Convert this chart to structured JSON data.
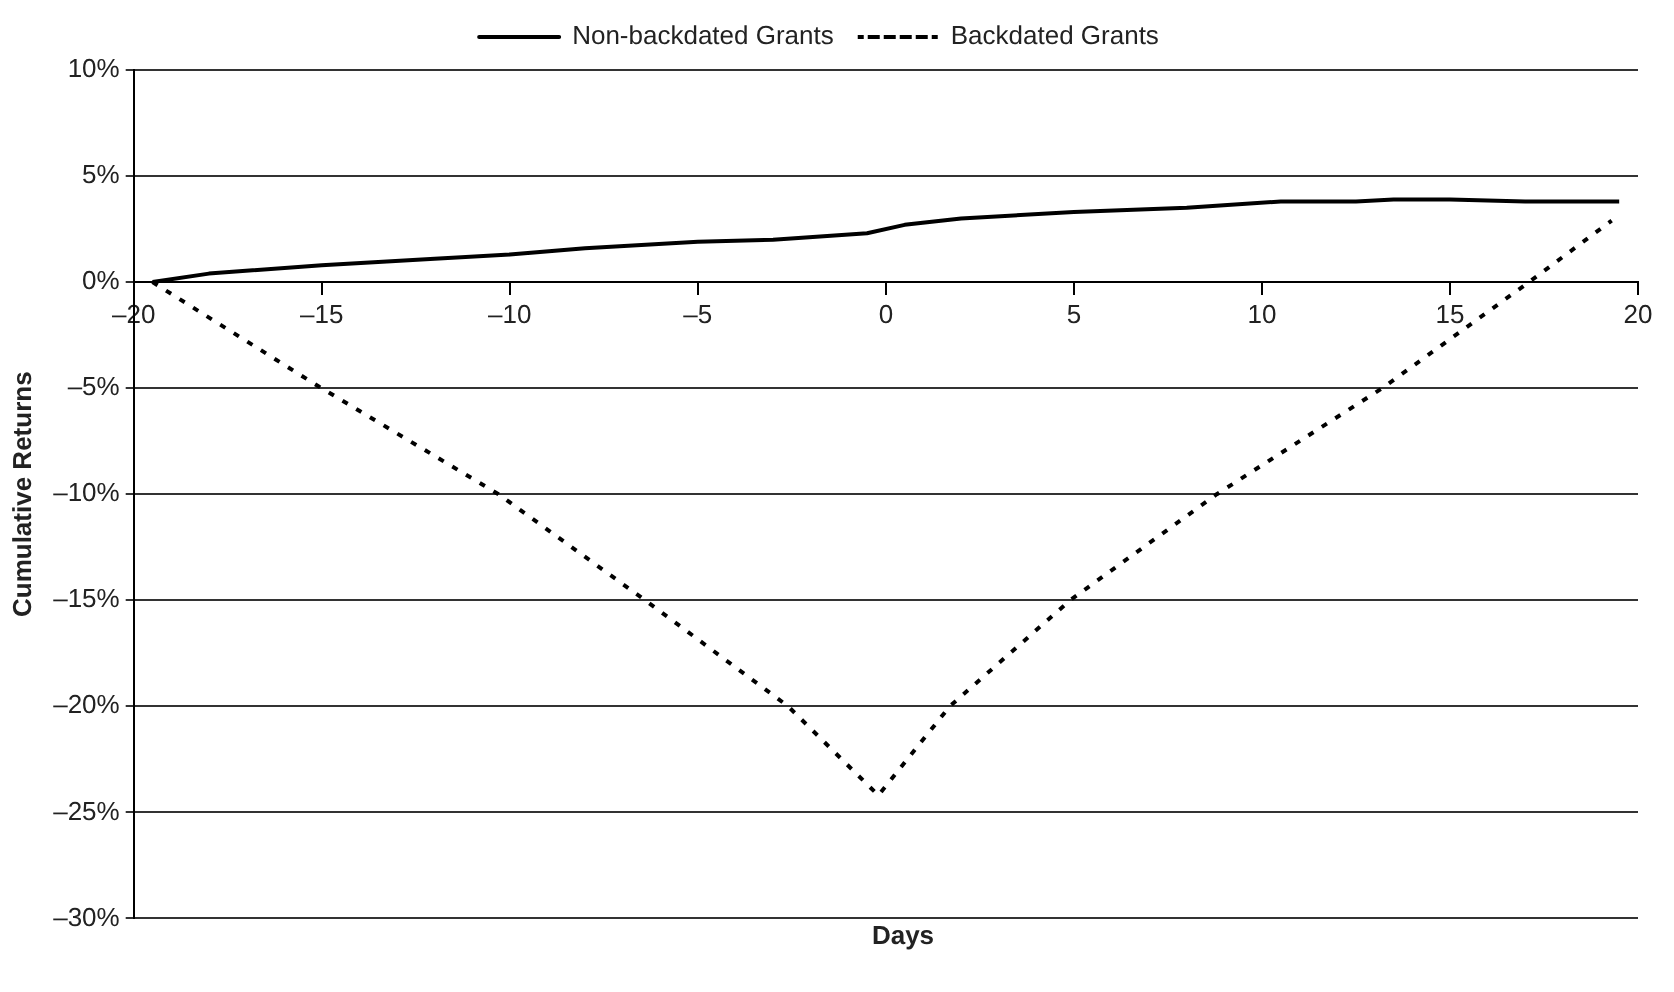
{
  "chart_data": {
    "type": "line",
    "xlabel": "Days",
    "ylabel": "Cumulative Returns",
    "xlim": [
      -20,
      20
    ],
    "xticks": [
      {
        "value": -20,
        "label": "–20"
      },
      {
        "value": -15,
        "label": "–15"
      },
      {
        "value": -10,
        "label": "–10"
      },
      {
        "value": -5,
        "label": "–5"
      },
      0,
      5,
      10,
      15,
      20
    ],
    "ylim": [
      -30,
      10
    ],
    "yticks": [
      {
        "value": -30,
        "label": "–30%"
      },
      {
        "value": -25,
        "label": "–25%"
      },
      {
        "value": -20,
        "label": "–20%"
      },
      {
        "value": -15,
        "label": "–15%"
      },
      {
        "value": -10,
        "label": "–10%"
      },
      {
        "value": -5,
        "label": "–5%"
      },
      {
        "value": 0,
        "label": "0%"
      },
      {
        "value": 5,
        "label": "5%"
      },
      {
        "value": 10,
        "label": "10%"
      }
    ],
    "grid": "y",
    "legend": "top",
    "marker": "none",
    "series": [
      {
        "name": "Non-backdated Grants",
        "color": "#000000",
        "line_style": "solid",
        "x": [
          -19.5,
          -18,
          -15,
          -12,
          -10,
          -8,
          -5,
          -3,
          -0.5,
          0.5,
          2,
          5,
          8,
          10.5,
          12.5,
          13.5,
          15,
          17,
          19.5
        ],
        "values": [
          0,
          0.4,
          0.8,
          1.1,
          1.3,
          1.6,
          1.9,
          2.0,
          2.3,
          2.7,
          3.0,
          3.3,
          3.5,
          3.8,
          3.8,
          3.9,
          3.9,
          3.8,
          3.8
        ]
      },
      {
        "name": "Backdated Grants",
        "color": "#000000",
        "line_style": "dotted",
        "x": [
          -19.5,
          -15.1,
          -10.3,
          -6.4,
          -2.6,
          -0.2,
          1.7,
          4.9,
          8.8,
          13.2,
          17.1,
          19.3
        ],
        "values": [
          0,
          -4.9,
          -10,
          -15,
          -20,
          -24.2,
          -20,
          -15,
          -10,
          -5,
          0,
          2.9
        ]
      }
    ]
  }
}
